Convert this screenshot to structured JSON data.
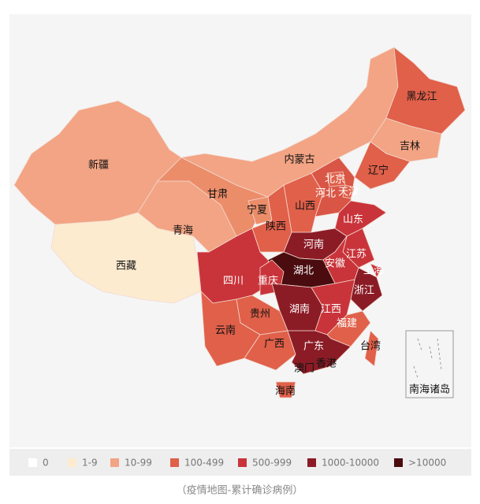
{
  "regions": [
    "新疆",
    "西藏",
    "青海",
    "甘肃",
    "内蒙古",
    "黑龙江",
    "吉林",
    "辽宁",
    "北京",
    "天津",
    "河北",
    "山西",
    "宁夏",
    "陕西",
    "山东",
    "河南",
    "江苏",
    "安徽",
    "上海",
    "湖北",
    "四川",
    "重庆",
    "浙江",
    "湖南",
    "江西",
    "贵州",
    "云南",
    "福建",
    "广西",
    "广东",
    "台湾",
    "香港",
    "澳门",
    "海南",
    "南海诸岛"
  ],
  "legend": [
    "0",
    "1-9",
    "10-99",
    "100-499",
    "500-999",
    "1000-10000",
    ">10000"
  ],
  "caption": "（疫情地图-累计确诊病例）"
}
